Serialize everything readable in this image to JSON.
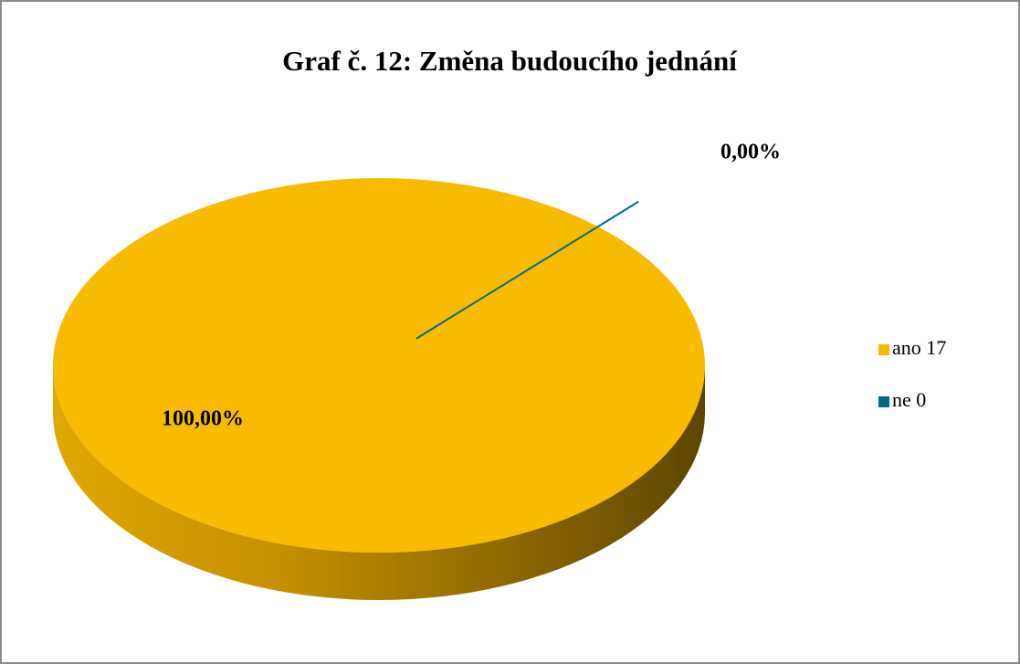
{
  "chart_data": {
    "type": "pie",
    "title": "Graf  č. 12: Změna budoucího jednání",
    "categories": [
      "ano 17",
      "ne 0"
    ],
    "values": [
      100,
      0
    ],
    "value_labels": [
      "100,00%",
      "0,00%"
    ],
    "colors": [
      "#f9bb00",
      "#006a8a"
    ],
    "legend": "right"
  }
}
